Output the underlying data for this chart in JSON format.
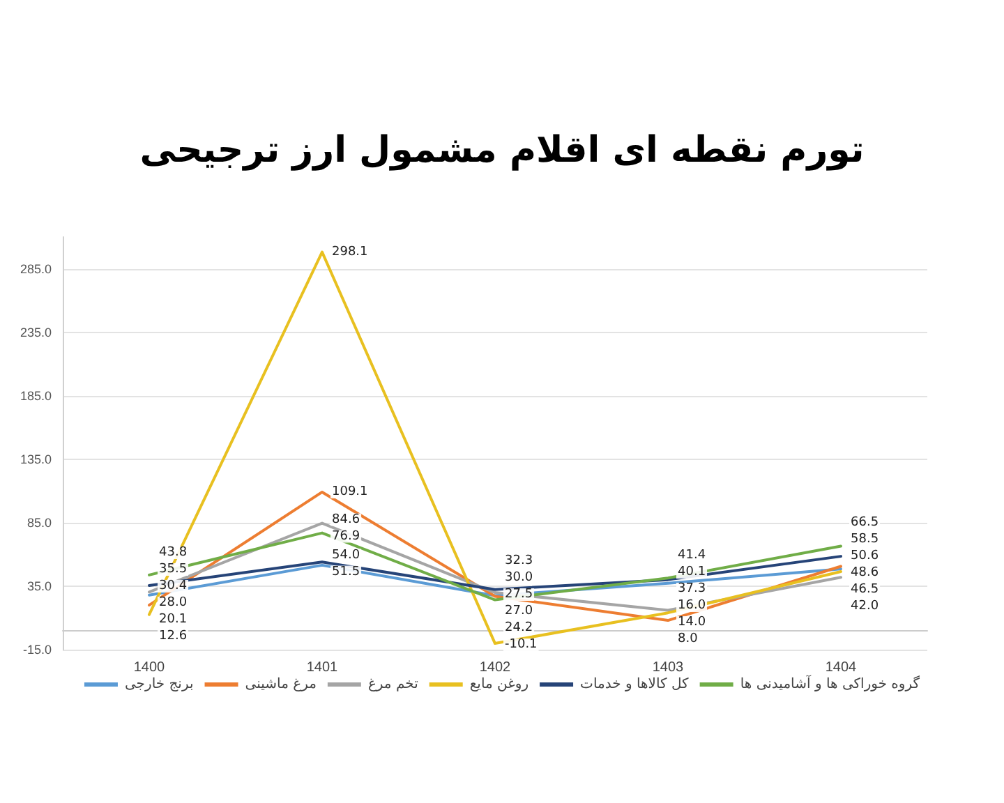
{
  "chart_data": {
    "type": "line",
    "title": "تورم نقطه ای اقلام مشمول ارز ترجیحی",
    "categories": [
      "1400",
      "1401",
      "1402",
      "1403",
      "1404"
    ],
    "series": [
      {
        "name": "برنج خارجی",
        "color": "#5b9bd5",
        "values": [
          28.0,
          51.5,
          27.5,
          37.3,
          48.6
        ],
        "value_labels": [
          "28.0",
          "51.5",
          "27.5",
          "37.3",
          "48.6"
        ]
      },
      {
        "name": "مرغ ماشینی",
        "color": "#ed7d31",
        "values": [
          20.1,
          109.1,
          27.0,
          8.0,
          50.6
        ],
        "value_labels": [
          "20.1",
          "109.1",
          "27.0",
          "8.0",
          "50.6"
        ]
      },
      {
        "name": "تخم مرغ",
        "color": "#a5a5a5",
        "values": [
          30.4,
          84.6,
          30.0,
          16.0,
          42.0
        ],
        "value_labels": [
          "30.4",
          "84.6",
          "30.0",
          "16.0",
          "42.0"
        ]
      },
      {
        "name": "روغن مایع",
        "color": "#e8c020",
        "values": [
          12.6,
          298.1,
          -10.1,
          14.0,
          46.5
        ],
        "value_labels": [
          "12.6",
          "298.1",
          "-10.1",
          "14.0",
          "46.5"
        ]
      },
      {
        "name": "کل کالاها و خدمات",
        "color": "#264478",
        "values": [
          35.5,
          54.0,
          32.3,
          40.1,
          58.5
        ],
        "value_labels": [
          "35.5",
          "54.0",
          "32.3",
          "40.1",
          "58.5"
        ]
      },
      {
        "name": "گروه خوراکی ها و آشامیدنی ها",
        "color": "#70ad47",
        "values": [
          43.8,
          76.9,
          24.2,
          41.4,
          66.5
        ],
        "value_labels": [
          "43.8",
          "76.9",
          "24.2",
          "41.4",
          "66.5"
        ]
      }
    ],
    "ylim": [
      -15,
      310
    ],
    "yticks": [
      {
        "value": -15,
        "label": "-15.0"
      },
      {
        "value": 35,
        "label": "35.0"
      },
      {
        "value": 85,
        "label": "85.0"
      },
      {
        "value": 135,
        "label": "135.0"
      },
      {
        "value": 185,
        "label": "185.0"
      },
      {
        "value": 235,
        "label": "235.0"
      },
      {
        "value": 285,
        "label": "285.0"
      }
    ],
    "grid": "y",
    "legend": "bottom",
    "marker": "none",
    "line_style": "solid"
  }
}
